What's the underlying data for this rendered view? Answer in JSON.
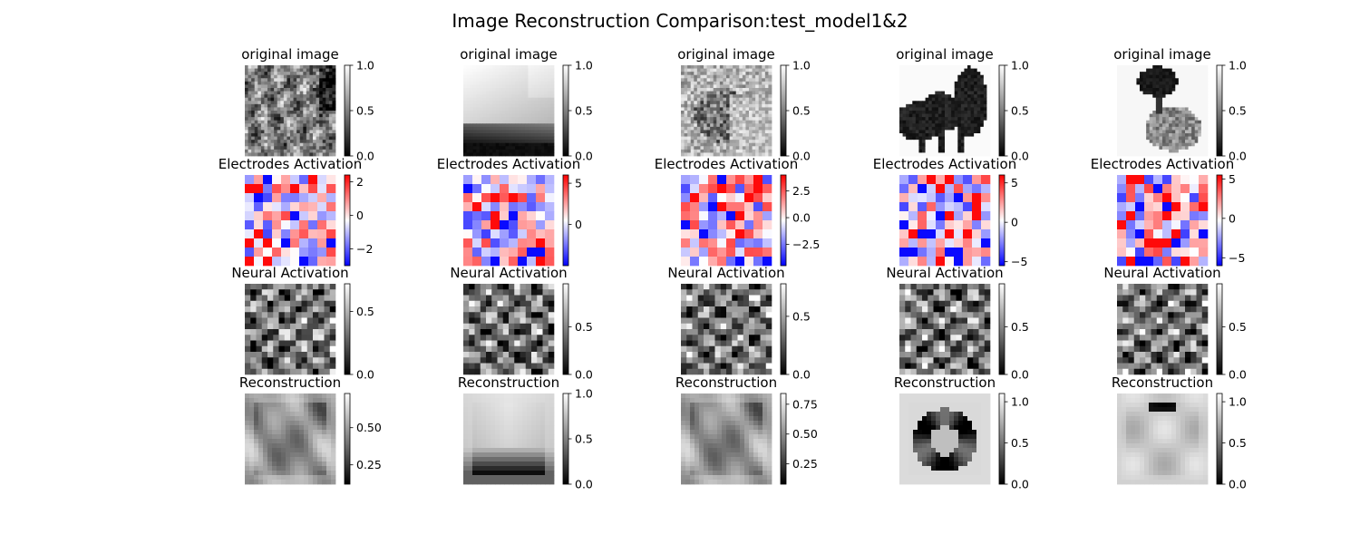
{
  "chart_data": {
    "type": "heatmap",
    "title": "Image Reconstruction Comparison:test_model1&2",
    "row_titles": [
      "original image",
      "Electrodes Activation",
      "Neural Activation",
      "Reconstruction"
    ],
    "rows": [
      {
        "cmap": "gray",
        "panels": [
          {
            "colorbar_ticks": [
              "0.0",
              "0.5",
              "1.0"
            ],
            "range": [
              0,
              1
            ],
            "content": "texture"
          },
          {
            "colorbar_ticks": [
              "0.0",
              "0.5",
              "1.0"
            ],
            "range": [
              0,
              1
            ],
            "content": "sky-horizon"
          },
          {
            "colorbar_ticks": [
              "0.0",
              "0.5",
              "1.0"
            ],
            "range": [
              0,
              1
            ],
            "content": "lion"
          },
          {
            "colorbar_ticks": [
              "0.0",
              "0.5",
              "1.0"
            ],
            "range": [
              0,
              1
            ],
            "content": "animals"
          },
          {
            "colorbar_ticks": [
              "0.0",
              "0.5",
              "1.0"
            ],
            "range": [
              0,
              1
            ],
            "content": "flower"
          }
        ]
      },
      {
        "cmap": "bwr",
        "panels": [
          {
            "colorbar_ticks": [
              "−2",
              "0",
              "2"
            ],
            "range": [
              -3,
              2.4
            ],
            "grid": 10
          },
          {
            "colorbar_ticks": [
              "0",
              "5"
            ],
            "range": [
              -5,
              6
            ],
            "grid": 10
          },
          {
            "colorbar_ticks": [
              "−2.5",
              "0.0",
              "2.5"
            ],
            "range": [
              -4.5,
              4
            ],
            "grid": 10
          },
          {
            "colorbar_ticks": [
              "−5",
              "0",
              "5"
            ],
            "range": [
              -5.5,
              6
            ],
            "grid": 10
          },
          {
            "colorbar_ticks": [
              "−5",
              "0",
              "5"
            ],
            "range": [
              -6,
              5.5
            ],
            "grid": 10
          }
        ]
      },
      {
        "cmap": "gray",
        "panels": [
          {
            "colorbar_ticks": [
              "0.0",
              "0.5"
            ],
            "range": [
              0,
              0.72
            ],
            "grid": 16
          },
          {
            "colorbar_ticks": [
              "0.0",
              "0.5"
            ],
            "range": [
              0,
              0.95
            ],
            "grid": 16
          },
          {
            "colorbar_ticks": [
              "0.0",
              "0.5"
            ],
            "range": [
              0,
              0.78
            ],
            "grid": 16
          },
          {
            "colorbar_ticks": [
              "0.0",
              "0.5"
            ],
            "range": [
              0,
              0.95
            ],
            "grid": 16
          },
          {
            "colorbar_ticks": [
              "0.0",
              "0.5"
            ],
            "range": [
              0,
              0.95
            ],
            "grid": 16
          }
        ]
      },
      {
        "cmap": "gray",
        "panels": [
          {
            "colorbar_ticks": [
              "0.25",
              "0.50"
            ],
            "range": [
              0.12,
              0.73
            ],
            "content": "blob"
          },
          {
            "colorbar_ticks": [
              "0.0",
              "0.5",
              "1.0"
            ],
            "range": [
              0,
              1
            ],
            "content": "sky-horizon-blur"
          },
          {
            "colorbar_ticks": [
              "0.25",
              "0.50",
              "0.75"
            ],
            "range": [
              0.08,
              0.84
            ],
            "content": "blob"
          },
          {
            "colorbar_ticks": [
              "0.0",
              "0.5",
              "1.0"
            ],
            "range": [
              0,
              1.1
            ],
            "content": "ring"
          },
          {
            "colorbar_ticks": [
              "0.0",
              "0.5",
              "1.0"
            ],
            "range": [
              0,
              1.1
            ],
            "content": "blob-light"
          }
        ]
      }
    ]
  }
}
